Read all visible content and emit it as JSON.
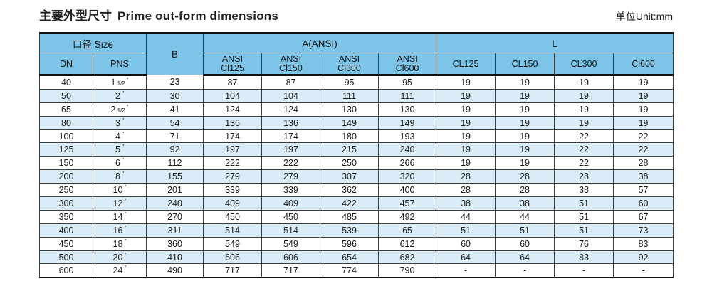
{
  "page": {
    "title_zh": "主要外型尺寸",
    "title_en": "Prime out-form dimensions",
    "unit_label": "单位Unit:mm"
  },
  "colors": {
    "header_bg": "#7cc4e8",
    "stripe_bg": "#d9ecf8",
    "border_thick": "#101010",
    "border_thin": "#3c3c3c",
    "text": "#1b1b1b"
  },
  "table": {
    "header": {
      "size_group": "口径 Size",
      "dn": "DN",
      "pns": "PNS",
      "b": "B",
      "a_group": "A(ANSI)",
      "a_cols": [
        {
          "line1": "ANSI",
          "line2": "Cl125"
        },
        {
          "line1": "ANSI",
          "line2": "Cl150"
        },
        {
          "line1": "ANSI",
          "line2": "Cl300"
        },
        {
          "line1": "ANSI",
          "line2": "Cl600"
        }
      ],
      "l_group": "L",
      "l_cols": [
        "CL125",
        "CL150",
        "CL300",
        "Cl600"
      ]
    },
    "rows": [
      {
        "dn": "40",
        "pns": {
          "main": "1",
          "frac": "1/2",
          "inch": "″"
        },
        "b": "23",
        "a": [
          "87",
          "87",
          "95",
          "95"
        ],
        "l": [
          "19",
          "19",
          "19",
          "19"
        ]
      },
      {
        "dn": "50",
        "pns": {
          "main": "2",
          "frac": "",
          "inch": "″"
        },
        "b": "30",
        "a": [
          "104",
          "104",
          "111",
          "111"
        ],
        "l": [
          "19",
          "19",
          "19",
          "19"
        ]
      },
      {
        "dn": "65",
        "pns": {
          "main": "2",
          "frac": "1/2",
          "inch": "″"
        },
        "b": "41",
        "a": [
          "124",
          "124",
          "130",
          "130"
        ],
        "l": [
          "19",
          "19",
          "19",
          "19"
        ]
      },
      {
        "dn": "80",
        "pns": {
          "main": "3",
          "frac": "",
          "inch": "″"
        },
        "b": "54",
        "a": [
          "136",
          "136",
          "149",
          "149"
        ],
        "l": [
          "19",
          "19",
          "19",
          "19"
        ]
      },
      {
        "dn": "100",
        "pns": {
          "main": "4",
          "frac": "",
          "inch": "″"
        },
        "b": "71",
        "a": [
          "174",
          "174",
          "180",
          "193"
        ],
        "l": [
          "19",
          "19",
          "22",
          "22"
        ]
      },
      {
        "dn": "125",
        "pns": {
          "main": "5",
          "frac": "",
          "inch": "″"
        },
        "b": "92",
        "a": [
          "197",
          "197",
          "215",
          "240"
        ],
        "l": [
          "19",
          "19",
          "22",
          "22"
        ]
      },
      {
        "dn": "150",
        "pns": {
          "main": "6",
          "frac": "",
          "inch": "″"
        },
        "b": "112",
        "a": [
          "222",
          "222",
          "250",
          "266"
        ],
        "l": [
          "19",
          "19",
          "22",
          "28"
        ]
      },
      {
        "dn": "200",
        "pns": {
          "main": "8",
          "frac": "",
          "inch": "″"
        },
        "b": "155",
        "a": [
          "279",
          "279",
          "307",
          "320"
        ],
        "l": [
          "28",
          "28",
          "28",
          "38"
        ]
      },
      {
        "dn": "250",
        "pns": {
          "main": "10",
          "frac": "",
          "inch": "″"
        },
        "b": "201",
        "a": [
          "339",
          "339",
          "362",
          "400"
        ],
        "l": [
          "28",
          "28",
          "38",
          "57"
        ]
      },
      {
        "dn": "300",
        "pns": {
          "main": "12",
          "frac": "",
          "inch": "″"
        },
        "b": "240",
        "a": [
          "409",
          "409",
          "422",
          "457"
        ],
        "l": [
          "38",
          "38",
          "51",
          "60"
        ]
      },
      {
        "dn": "350",
        "pns": {
          "main": "14",
          "frac": "",
          "inch": "″"
        },
        "b": "270",
        "a": [
          "450",
          "450",
          "485",
          "492"
        ],
        "l": [
          "44",
          "44",
          "51",
          "67"
        ]
      },
      {
        "dn": "400",
        "pns": {
          "main": "16",
          "frac": "",
          "inch": "″"
        },
        "b": "311",
        "a": [
          "514",
          "514",
          "539",
          "65"
        ],
        "l": [
          "51",
          "51",
          "51",
          "73"
        ]
      },
      {
        "dn": "450",
        "pns": {
          "main": "18",
          "frac": "",
          "inch": "″"
        },
        "b": "360",
        "a": [
          "549",
          "549",
          "596",
          "612"
        ],
        "l": [
          "60",
          "60",
          "76",
          "83"
        ]
      },
      {
        "dn": "500",
        "pns": {
          "main": "20",
          "frac": "",
          "inch": "″"
        },
        "b": "410",
        "a": [
          "606",
          "606",
          "654",
          "682"
        ],
        "l": [
          "64",
          "64",
          "83",
          "92"
        ]
      },
      {
        "dn": "600",
        "pns": {
          "main": "24",
          "frac": "",
          "inch": "″"
        },
        "b": "490",
        "a": [
          "717",
          "717",
          "774",
          "790"
        ],
        "l": [
          "-",
          "-",
          "-",
          "-"
        ]
      }
    ]
  }
}
